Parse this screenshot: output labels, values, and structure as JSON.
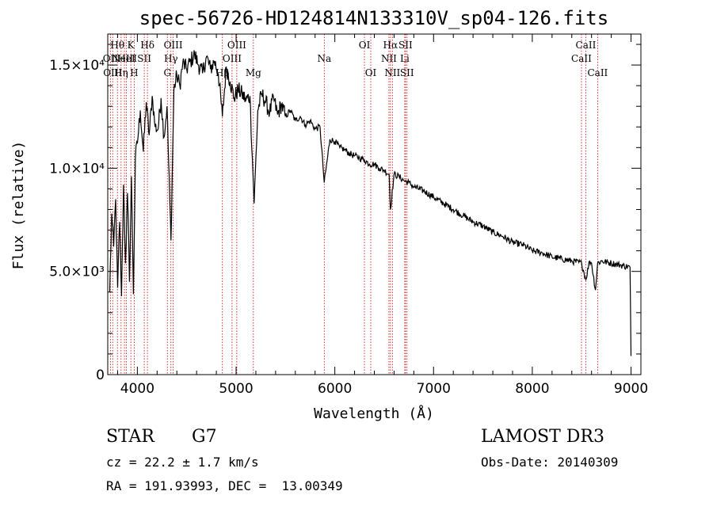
{
  "chart_data": {
    "type": "line",
    "title": "spec-56726-HD124814N133310V_sp04-126.fits",
    "xlabel": "Wavelength (Å)",
    "ylabel": "Flux (relative)",
    "xlim": [
      3700,
      9100
    ],
    "ylim": [
      0,
      16500
    ],
    "x_ticks": [
      {
        "value": 4000,
        "label": "4000"
      },
      {
        "value": 5000,
        "label": "5000"
      },
      {
        "value": 6000,
        "label": "6000"
      },
      {
        "value": 7000,
        "label": "7000"
      },
      {
        "value": 8000,
        "label": "8000"
      },
      {
        "value": 9000,
        "label": "9000"
      }
    ],
    "y_ticks": [
      {
        "value": 0,
        "label": "0"
      },
      {
        "value": 5000,
        "label": "5.0×10³"
      },
      {
        "value": 10000,
        "label": "1.0×10⁴"
      },
      {
        "value": 15000,
        "label": "1.5×10⁴"
      }
    ],
    "series": [
      {
        "name": "flux",
        "x": [
          3720,
          3740,
          3760,
          3780,
          3800,
          3820,
          3840,
          3860,
          3880,
          3900,
          3920,
          3940,
          3960,
          3980,
          4000,
          4030,
          4060,
          4090,
          4120,
          4150,
          4180,
          4210,
          4240,
          4270,
          4300,
          4340,
          4370,
          4400,
          4430,
          4460,
          4500,
          4540,
          4580,
          4620,
          4660,
          4700,
          4740,
          4780,
          4820,
          4861,
          4900,
          4940,
          4980,
          5020,
          5060,
          5100,
          5140,
          5183,
          5220,
          5260,
          5300,
          5340,
          5380,
          5420,
          5460,
          5500,
          5550,
          5600,
          5650,
          5700,
          5750,
          5800,
          5850,
          5893,
          5950,
          6000,
          6050,
          6100,
          6150,
          6200,
          6250,
          6300,
          6350,
          6400,
          6450,
          6500,
          6550,
          6563,
          6600,
          6650,
          6700,
          6750,
          6800,
          6900,
          7000,
          7100,
          7200,
          7300,
          7400,
          7500,
          7600,
          7700,
          7800,
          7900,
          8000,
          8100,
          8200,
          8300,
          8400,
          8500,
          8542,
          8580,
          8600,
          8640,
          8662,
          8700,
          8800,
          8900,
          8990,
          9000
        ],
        "y": [
          4000,
          7800,
          6200,
          8500,
          4200,
          7400,
          3800,
          9200,
          5400,
          8800,
          4500,
          9600,
          3900,
          10500,
          11200,
          12800,
          10800,
          13200,
          11600,
          13500,
          12000,
          11900,
          13400,
          11500,
          13000,
          6500,
          13800,
          14500,
          14000,
          15100,
          14800,
          15200,
          15500,
          15000,
          14600,
          15400,
          14800,
          15200,
          14600,
          12500,
          14900,
          14200,
          13400,
          13800,
          13600,
          13300,
          13500,
          8300,
          12800,
          13600,
          13200,
          12700,
          13400,
          12600,
          13100,
          12500,
          12800,
          12300,
          12500,
          12100,
          12300,
          11900,
          12000,
          9300,
          11400,
          11300,
          11000,
          10900,
          10700,
          10600,
          10500,
          10400,
          10200,
          10200,
          10000,
          9900,
          9700,
          8000,
          9700,
          9600,
          9400,
          9300,
          9100,
          8900,
          8600,
          8300,
          8000,
          7700,
          7400,
          7200,
          6900,
          6700,
          6400,
          6300,
          6000,
          5900,
          5700,
          5600,
          5500,
          5400,
          4600,
          5500,
          5400,
          4100,
          5400,
          5500,
          5400,
          5300,
          5200,
          900
        ]
      }
    ],
    "line_markers": [
      {
        "wavelength": 3727,
        "label": "OII",
        "row": 1
      },
      {
        "wavelength": 3750,
        "label": "OIII",
        "row": 2
      },
      {
        "wavelength": 3798,
        "label": "Hθ",
        "row": 0
      },
      {
        "wavelength": 3835,
        "label": "Hη",
        "row": 2
      },
      {
        "wavelength": 3869,
        "label": "NeIII",
        "row": 1
      },
      {
        "wavelength": 3889,
        "label": "HeI",
        "row": 1
      },
      {
        "wavelength": 3934,
        "label": "K",
        "row": 0
      },
      {
        "wavelength": 3968,
        "label": "H",
        "row": 2
      },
      {
        "wavelength": 4070,
        "label": "SII",
        "row": 1
      },
      {
        "wavelength": 4102,
        "label": "Hδ",
        "row": 0
      },
      {
        "wavelength": 4304,
        "label": "G",
        "row": 2
      },
      {
        "wavelength": 4340,
        "label": "Hγ",
        "row": 1
      },
      {
        "wavelength": 4363,
        "label": "OIII",
        "row": 0
      },
      {
        "wavelength": 4861,
        "label": "Hβ",
        "row": 2
      },
      {
        "wavelength": 4959,
        "label": "OIII",
        "row": 1
      },
      {
        "wavelength": 5007,
        "label": "OIII",
        "row": 0
      },
      {
        "wavelength": 5175,
        "label": "Mg",
        "row": 2
      },
      {
        "wavelength": 5893,
        "label": "Na",
        "row": 1
      },
      {
        "wavelength": 6300,
        "label": "OI",
        "row": 0
      },
      {
        "wavelength": 6364,
        "label": "OI",
        "row": 2
      },
      {
        "wavelength": 6548,
        "label": "NII",
        "row": 1
      },
      {
        "wavelength": 6563,
        "label": "Hα",
        "row": 0
      },
      {
        "wavelength": 6583,
        "label": "NII",
        "row": 2
      },
      {
        "wavelength": 6708,
        "label": "Li",
        "row": 1
      },
      {
        "wavelength": 6716,
        "label": "SII",
        "row": 0
      },
      {
        "wavelength": 6731,
        "label": "SII",
        "row": 2
      },
      {
        "wavelength": 8498,
        "label": "CaII",
        "row": 1
      },
      {
        "wavelength": 8542,
        "label": "CaII",
        "row": 0
      },
      {
        "wavelength": 8662,
        "label": "CaII",
        "row": 2
      }
    ],
    "marker_color": "#cc0000",
    "line_color": "#000000"
  },
  "info": {
    "object_class": "STAR",
    "subclass": "G7",
    "redshift": "cz = 22.2 ± 1.7 km/s",
    "coordinates": "RA = 191.93993, DEC =  13.00349",
    "survey": "LAMOST DR3",
    "obs_date": "Obs-Date: 20140309"
  }
}
